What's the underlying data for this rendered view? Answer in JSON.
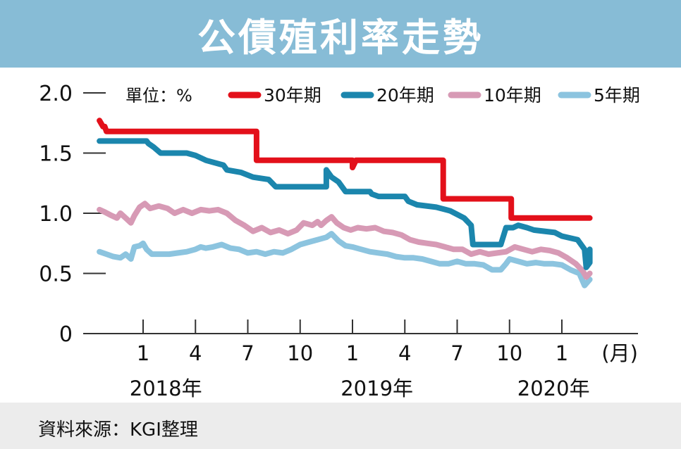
{
  "title": "公債殖利率走勢",
  "source": "資料來源：KGI整理",
  "chart_data": {
    "type": "line",
    "unit_label": "單位：%",
    "x_unit_label": "(月)",
    "yticks": [
      "0",
      "0.5",
      "1.0",
      "1.5",
      "2.0"
    ],
    "ylim": [
      0,
      2.0
    ],
    "xlim": [
      0,
      26.6
    ],
    "xticks": [
      {
        "x": 1,
        "label": "1"
      },
      {
        "x": 4,
        "label": "4"
      },
      {
        "x": 7,
        "label": "7"
      },
      {
        "x": 10,
        "label": "10"
      },
      {
        "x": 13,
        "label": "1"
      },
      {
        "x": 16,
        "label": "4"
      },
      {
        "x": 19,
        "label": "7"
      },
      {
        "x": 22,
        "label": "10"
      },
      {
        "x": 25,
        "label": "1"
      }
    ],
    "year_labels": [
      {
        "x": 2.3,
        "label": "2018年"
      },
      {
        "x": 14.4,
        "label": "2019年"
      },
      {
        "x": 26.6,
        "label": "2020年"
      }
    ],
    "series": [
      {
        "name": "30年期",
        "color": "#e3101a",
        "points": [
          [
            -1.5,
            1.77
          ],
          [
            -1.3,
            1.72
          ],
          [
            -1.2,
            1.72
          ],
          [
            -1.1,
            1.68
          ],
          [
            7.5,
            1.68
          ],
          [
            7.5,
            1.44
          ],
          [
            13.0,
            1.44
          ],
          [
            13.0,
            1.38
          ],
          [
            13.2,
            1.44
          ],
          [
            18.2,
            1.44
          ],
          [
            18.2,
            1.12
          ],
          [
            22.1,
            1.12
          ],
          [
            22.1,
            0.96
          ],
          [
            26.6,
            0.96
          ]
        ]
      },
      {
        "name": "20年期",
        "color": "#1b86ad",
        "points": [
          [
            -1.5,
            1.6
          ],
          [
            0.8,
            1.6
          ],
          [
            1.2,
            1.6
          ],
          [
            1.3,
            1.58
          ],
          [
            1.6,
            1.55
          ],
          [
            2.0,
            1.5
          ],
          [
            3.5,
            1.5
          ],
          [
            4.0,
            1.48
          ],
          [
            4.6,
            1.44
          ],
          [
            5.6,
            1.4
          ],
          [
            5.8,
            1.36
          ],
          [
            6.6,
            1.34
          ],
          [
            7.3,
            1.3
          ],
          [
            8.2,
            1.28
          ],
          [
            8.6,
            1.22
          ],
          [
            11.5,
            1.22
          ],
          [
            11.5,
            1.36
          ],
          [
            11.8,
            1.3
          ],
          [
            12.2,
            1.26
          ],
          [
            12.6,
            1.18
          ],
          [
            14.0,
            1.18
          ],
          [
            14.1,
            1.16
          ],
          [
            14.5,
            1.14
          ],
          [
            16.0,
            1.14
          ],
          [
            16.2,
            1.1
          ],
          [
            16.7,
            1.07
          ],
          [
            17.8,
            1.05
          ],
          [
            18.6,
            1.02
          ],
          [
            19.4,
            0.96
          ],
          [
            19.8,
            0.9
          ],
          [
            19.9,
            0.74
          ],
          [
            21.5,
            0.74
          ],
          [
            21.8,
            0.88
          ],
          [
            22.2,
            0.88
          ],
          [
            22.5,
            0.9
          ],
          [
            23.0,
            0.88
          ],
          [
            23.4,
            0.86
          ],
          [
            24.6,
            0.84
          ],
          [
            25.0,
            0.81
          ],
          [
            25.9,
            0.78
          ],
          [
            26.3,
            0.7
          ],
          [
            26.4,
            0.55
          ],
          [
            26.6,
            0.59
          ],
          [
            26.6,
            0.7
          ]
        ]
      },
      {
        "name": "10年期",
        "color": "#d79ab5",
        "points": [
          [
            -1.5,
            1.03
          ],
          [
            -1.2,
            1.01
          ],
          [
            -0.8,
            0.98
          ],
          [
            -0.5,
            0.96
          ],
          [
            -0.3,
            1.0
          ],
          [
            0,
            0.96
          ],
          [
            0.3,
            0.92
          ],
          [
            0.5,
            0.98
          ],
          [
            0.8,
            1.05
          ],
          [
            1.1,
            1.08
          ],
          [
            1.4,
            1.04
          ],
          [
            1.9,
            1.06
          ],
          [
            2.4,
            1.04
          ],
          [
            2.8,
            1.0
          ],
          [
            3.3,
            1.03
          ],
          [
            3.8,
            1.0
          ],
          [
            4.3,
            1.03
          ],
          [
            4.8,
            1.02
          ],
          [
            5.3,
            1.03
          ],
          [
            5.8,
            1.0
          ],
          [
            6.3,
            0.94
          ],
          [
            6.8,
            0.9
          ],
          [
            7.3,
            0.85
          ],
          [
            7.8,
            0.88
          ],
          [
            8.3,
            0.84
          ],
          [
            8.8,
            0.86
          ],
          [
            9.3,
            0.83
          ],
          [
            9.8,
            0.86
          ],
          [
            10.2,
            0.92
          ],
          [
            10.7,
            0.9
          ],
          [
            11.0,
            0.93
          ],
          [
            11.2,
            0.9
          ],
          [
            11.5,
            0.94
          ],
          [
            11.8,
            0.97
          ],
          [
            12.1,
            0.92
          ],
          [
            12.5,
            0.88
          ],
          [
            12.9,
            0.86
          ],
          [
            13.3,
            0.88
          ],
          [
            13.8,
            0.87
          ],
          [
            14.3,
            0.88
          ],
          [
            14.8,
            0.85
          ],
          [
            15.3,
            0.84
          ],
          [
            15.8,
            0.82
          ],
          [
            16.3,
            0.78
          ],
          [
            16.8,
            0.76
          ],
          [
            17.3,
            0.75
          ],
          [
            17.8,
            0.74
          ],
          [
            18.3,
            0.72
          ],
          [
            18.8,
            0.7
          ],
          [
            19.3,
            0.7
          ],
          [
            19.8,
            0.66
          ],
          [
            20.3,
            0.68
          ],
          [
            20.8,
            0.66
          ],
          [
            21.3,
            0.67
          ],
          [
            21.8,
            0.68
          ],
          [
            22.3,
            0.72
          ],
          [
            22.8,
            0.7
          ],
          [
            23.3,
            0.68
          ],
          [
            23.8,
            0.7
          ],
          [
            24.3,
            0.69
          ],
          [
            24.8,
            0.67
          ],
          [
            25.3,
            0.63
          ],
          [
            25.8,
            0.58
          ],
          [
            26.2,
            0.52
          ],
          [
            26.4,
            0.47
          ],
          [
            26.6,
            0.5
          ]
        ]
      },
      {
        "name": "5年期",
        "color": "#8cc4df",
        "points": [
          [
            -1.5,
            0.68
          ],
          [
            -1.1,
            0.66
          ],
          [
            -0.7,
            0.64
          ],
          [
            -0.3,
            0.63
          ],
          [
            0,
            0.66
          ],
          [
            0.3,
            0.62
          ],
          [
            0.5,
            0.72
          ],
          [
            0.8,
            0.73
          ],
          [
            1.0,
            0.75
          ],
          [
            1.2,
            0.7
          ],
          [
            1.5,
            0.66
          ],
          [
            2.0,
            0.66
          ],
          [
            2.5,
            0.66
          ],
          [
            3.0,
            0.67
          ],
          [
            3.5,
            0.68
          ],
          [
            4.0,
            0.7
          ],
          [
            4.3,
            0.72
          ],
          [
            4.6,
            0.71
          ],
          [
            5.0,
            0.72
          ],
          [
            5.5,
            0.74
          ],
          [
            6.0,
            0.71
          ],
          [
            6.5,
            0.7
          ],
          [
            7.0,
            0.67
          ],
          [
            7.5,
            0.68
          ],
          [
            8.0,
            0.66
          ],
          [
            8.5,
            0.68
          ],
          [
            9.0,
            0.67
          ],
          [
            9.5,
            0.7
          ],
          [
            10.0,
            0.74
          ],
          [
            10.5,
            0.76
          ],
          [
            11.0,
            0.78
          ],
          [
            11.5,
            0.8
          ],
          [
            11.8,
            0.83
          ],
          [
            12.2,
            0.77
          ],
          [
            12.6,
            0.73
          ],
          [
            13.0,
            0.72
          ],
          [
            13.5,
            0.7
          ],
          [
            14.0,
            0.68
          ],
          [
            14.5,
            0.67
          ],
          [
            15.0,
            0.66
          ],
          [
            15.5,
            0.64
          ],
          [
            16.0,
            0.63
          ],
          [
            16.5,
            0.63
          ],
          [
            17.0,
            0.62
          ],
          [
            17.5,
            0.6
          ],
          [
            18.0,
            0.58
          ],
          [
            18.5,
            0.58
          ],
          [
            19.0,
            0.6
          ],
          [
            19.5,
            0.58
          ],
          [
            20.0,
            0.58
          ],
          [
            20.5,
            0.57
          ],
          [
            21.0,
            0.53
          ],
          [
            21.5,
            0.53
          ],
          [
            21.8,
            0.58
          ],
          [
            22.0,
            0.62
          ],
          [
            22.5,
            0.6
          ],
          [
            23.0,
            0.58
          ],
          [
            23.5,
            0.59
          ],
          [
            24.0,
            0.58
          ],
          [
            24.5,
            0.58
          ],
          [
            25.0,
            0.57
          ],
          [
            25.5,
            0.53
          ],
          [
            26.0,
            0.5
          ],
          [
            26.3,
            0.4
          ],
          [
            26.6,
            0.45
          ]
        ]
      }
    ]
  }
}
